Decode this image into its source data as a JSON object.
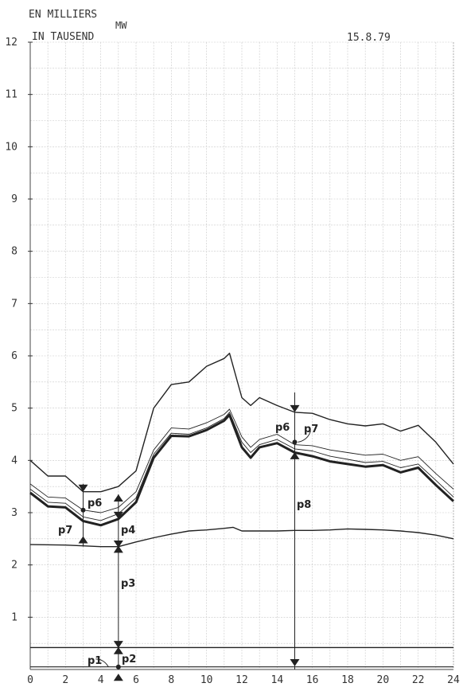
{
  "chart_data": {
    "type": "line",
    "unit_label": "MW",
    "title_lines": [
      "EN MILLIERS",
      "IN TAUSEND"
    ],
    "date": "15.8.79",
    "xlim": [
      0,
      24
    ],
    "ylim": [
      0,
      12
    ],
    "x_ticks": [
      "0",
      "2",
      "4",
      "6",
      "8",
      "10",
      "12",
      "14",
      "16",
      "18",
      "20",
      "22",
      "24"
    ],
    "y_ticks": [
      "1",
      "2",
      "3",
      "4",
      "5",
      "6",
      "7",
      "8",
      "9",
      "10",
      "11",
      "12"
    ],
    "grid": true,
    "series": [
      {
        "id": "top",
        "width": 1.4,
        "x": [
          0,
          1,
          2,
          3,
          4,
          5,
          6,
          7,
          8,
          9,
          10,
          11,
          11.3,
          12,
          12.5,
          13,
          14,
          15,
          16,
          17,
          18,
          19,
          20,
          21,
          22,
          23,
          24
        ],
        "y": [
          4.0,
          3.7,
          3.7,
          3.4,
          3.4,
          3.5,
          3.8,
          5.0,
          5.45,
          5.5,
          5.8,
          5.95,
          6.05,
          5.2,
          5.05,
          5.2,
          5.05,
          4.92,
          4.9,
          4.78,
          4.7,
          4.66,
          4.7,
          4.56,
          4.67,
          4.35,
          3.93
        ]
      },
      {
        "id": "upper-thin",
        "width": 0.9,
        "x": [
          0,
          1,
          2,
          3,
          4,
          5,
          6,
          7,
          8,
          9,
          10,
          11,
          11.3,
          12,
          12.5,
          13,
          14,
          15,
          16,
          17,
          18,
          19,
          20,
          21,
          22,
          23,
          24
        ],
        "y": [
          3.55,
          3.3,
          3.28,
          3.05,
          3.0,
          3.1,
          3.4,
          4.2,
          4.62,
          4.6,
          4.72,
          4.88,
          4.98,
          4.45,
          4.25,
          4.4,
          4.5,
          4.3,
          4.28,
          4.2,
          4.15,
          4.1,
          4.12,
          4.0,
          4.07,
          3.75,
          3.45
        ]
      },
      {
        "id": "middle-thin",
        "width": 0.9,
        "x": [
          0,
          1,
          2,
          3,
          4,
          5,
          6,
          7,
          8,
          9,
          10,
          11,
          11.3,
          12,
          12.5,
          13,
          14,
          15,
          16,
          17,
          18,
          19,
          20,
          21,
          22,
          23,
          24
        ],
        "y": [
          3.45,
          3.2,
          3.18,
          2.92,
          2.85,
          2.98,
          3.28,
          4.12,
          4.52,
          4.5,
          4.62,
          4.8,
          4.92,
          4.35,
          4.15,
          4.3,
          4.4,
          4.22,
          4.18,
          4.08,
          4.02,
          3.96,
          3.98,
          3.86,
          3.93,
          3.62,
          3.3
        ]
      },
      {
        "id": "bold",
        "width": 3,
        "x": [
          0,
          1,
          2,
          3,
          4,
          5,
          6,
          7,
          8,
          9,
          10,
          11,
          11.3,
          12,
          12.5,
          13,
          14,
          15,
          16,
          17,
          18,
          19,
          20,
          21,
          22,
          23,
          24
        ],
        "y": [
          3.38,
          3.12,
          3.1,
          2.84,
          2.76,
          2.88,
          3.2,
          4.05,
          4.47,
          4.46,
          4.58,
          4.76,
          4.87,
          4.25,
          4.05,
          4.25,
          4.33,
          4.15,
          4.08,
          3.98,
          3.93,
          3.88,
          3.91,
          3.77,
          3.86,
          3.53,
          3.22
        ]
      },
      {
        "id": "base",
        "width": 1.4,
        "x": [
          0,
          2,
          4,
          5,
          6,
          7,
          8,
          9,
          10,
          11,
          11.5,
          12,
          13,
          14,
          15,
          16,
          17,
          18,
          19,
          20,
          21,
          22,
          23,
          24
        ],
        "y": [
          2.39,
          2.38,
          2.35,
          2.35,
          2.44,
          2.52,
          2.59,
          2.65,
          2.67,
          2.7,
          2.72,
          2.65,
          2.65,
          2.65,
          2.66,
          2.66,
          2.67,
          2.69,
          2.68,
          2.67,
          2.65,
          2.62,
          2.57,
          2.5
        ]
      },
      {
        "id": "flat-upper",
        "width": 1.4,
        "x": [
          0,
          24
        ],
        "y": [
          0.42,
          0.42
        ]
      },
      {
        "id": "flat-lower",
        "width": 1.2,
        "x": [
          0,
          24
        ],
        "y": [
          0.05,
          0.05
        ]
      }
    ],
    "annotations": [
      "p1",
      "p2",
      "p3",
      "p4",
      "p6",
      "p7",
      "p8"
    ]
  }
}
